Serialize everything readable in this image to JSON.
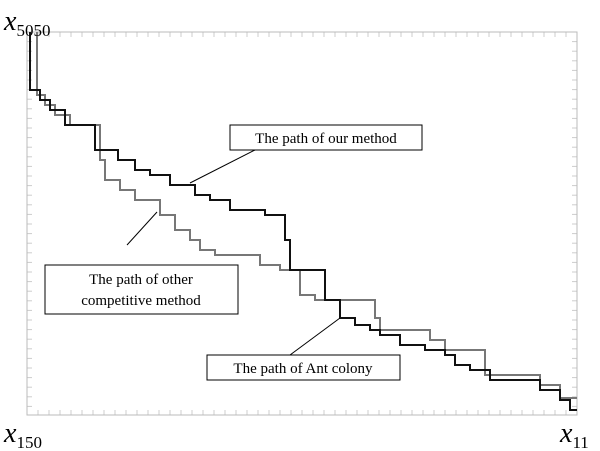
{
  "corner_labels": {
    "top_left": {
      "symbol": "x",
      "subscript": "5050"
    },
    "bottom_left": {
      "symbol": "x",
      "subscript": "150"
    },
    "bottom_right": {
      "symbol": "x",
      "subscript": "11"
    }
  },
  "annotations": [
    {
      "lines": [
        "The path of our method"
      ]
    },
    {
      "lines": [
        "The path of other",
        "competitive method"
      ]
    },
    {
      "lines": [
        "The path of Ant colony"
      ]
    }
  ]
}
